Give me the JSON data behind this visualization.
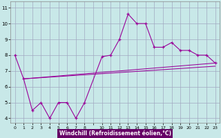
{
  "line1_x": [
    0,
    1,
    2,
    3,
    4,
    5,
    6,
    7,
    8,
    10,
    11,
    12,
    13,
    14,
    15,
    16,
    17,
    18,
    19,
    20,
    21,
    22,
    23
  ],
  "line1_y": [
    8.0,
    6.5,
    4.5,
    5.0,
    4.0,
    5.0,
    5.0,
    4.0,
    5.0,
    7.9,
    8.0,
    9.0,
    10.6,
    10.0,
    10.0,
    8.5,
    8.5,
    8.8,
    8.3,
    8.3,
    8.0,
    8.0,
    7.5
  ],
  "trend1_x": [
    1,
    23
  ],
  "trend1_y": [
    6.5,
    7.5
  ],
  "trend2_x": [
    1,
    23
  ],
  "trend2_y": [
    6.5,
    7.3
  ],
  "color": "#990099",
  "bg_color": "#c8e8e8",
  "xlabel_bg": "#660066",
  "xlabel_color": "#ffffff",
  "grid_color": "#a0a8c0",
  "xlabel": "Windchill (Refroidissement éolien,°C)",
  "ylabel_ticks": [
    4,
    5,
    6,
    7,
    8,
    9,
    10,
    11
  ],
  "xtick_labels": [
    "0",
    "1",
    "2",
    "3",
    "4",
    "5",
    "6",
    "7",
    "8",
    "",
    "10",
    "11",
    "12",
    "13",
    "14",
    "15",
    "16",
    "17",
    "18",
    "19",
    "20",
    "21",
    "22",
    "23"
  ],
  "xticks": [
    0,
    1,
    2,
    3,
    4,
    5,
    6,
    7,
    8,
    9,
    10,
    11,
    12,
    13,
    14,
    15,
    16,
    17,
    18,
    19,
    20,
    21,
    22,
    23
  ],
  "xlim": [
    -0.5,
    23.5
  ],
  "ylim": [
    3.7,
    11.4
  ]
}
